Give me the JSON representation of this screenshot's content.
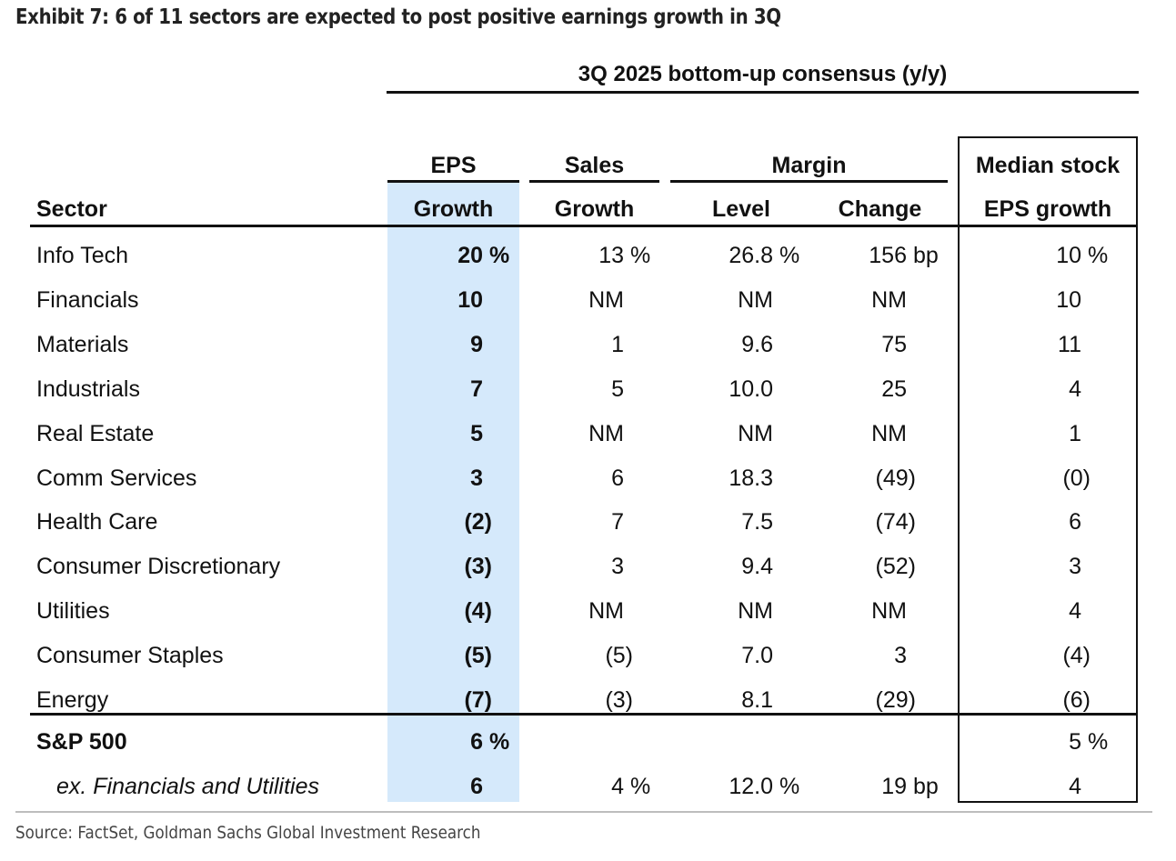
{
  "title": "Exhibit 7: 6 of 11 sectors are expected to post positive earnings growth in 3Q",
  "group_header": "3Q 2025 bottom-up consensus (y/y)",
  "columns": {
    "sector": "Sector",
    "eps_top": "EPS",
    "eps_bottom": "Growth",
    "sales_top": "Sales",
    "sales_bottom": "Growth",
    "margin_top": "Margin",
    "level": "Level",
    "change": "Change",
    "median_top": "Median stock",
    "median_bottom": "EPS growth"
  },
  "rows": [
    {
      "sector": "Info Tech",
      "eps": "20",
      "eps_sfx": " %",
      "sales": "13",
      "sales_sfx": " %",
      "level": "26.8",
      "level_sfx": " %",
      "change": "156",
      "change_sfx": " bp",
      "median": "10",
      "median_sfx": " %"
    },
    {
      "sector": "Financials",
      "eps": "10",
      "eps_sfx": "",
      "sales": "NM",
      "sales_sfx": "",
      "level": "NM",
      "level_sfx": "",
      "change": "NM",
      "change_sfx": "",
      "median": "10",
      "median_sfx": ""
    },
    {
      "sector": "Materials",
      "eps": "9",
      "eps_sfx": "",
      "sales": "1",
      "sales_sfx": "",
      "level": "9.6",
      "level_sfx": "",
      "change": "75",
      "change_sfx": "",
      "median": "11",
      "median_sfx": ""
    },
    {
      "sector": "Industrials",
      "eps": "7",
      "eps_sfx": "",
      "sales": "5",
      "sales_sfx": "",
      "level": "10.0",
      "level_sfx": "",
      "change": "25",
      "change_sfx": "",
      "median": "4",
      "median_sfx": ""
    },
    {
      "sector": "Real Estate",
      "eps": "5",
      "eps_sfx": "",
      "sales": "NM",
      "sales_sfx": "",
      "level": "NM",
      "level_sfx": "",
      "change": "NM",
      "change_sfx": "",
      "median": "1",
      "median_sfx": ""
    },
    {
      "sector": "Comm Services",
      "eps": "3",
      "eps_sfx": "",
      "sales": "6",
      "sales_sfx": "",
      "level": "18.3",
      "level_sfx": "",
      "change": "(49)",
      "change_sfx": "",
      "median": "(0)",
      "median_sfx": ""
    },
    {
      "sector": "Health Care",
      "eps": "(2)",
      "eps_sfx": "",
      "sales": "7",
      "sales_sfx": "",
      "level": "7.5",
      "level_sfx": "",
      "change": "(74)",
      "change_sfx": "",
      "median": "6",
      "median_sfx": ""
    },
    {
      "sector": "Consumer Discretionary",
      "eps": "(3)",
      "eps_sfx": "",
      "sales": "3",
      "sales_sfx": "",
      "level": "9.4",
      "level_sfx": "",
      "change": "(52)",
      "change_sfx": "",
      "median": "3",
      "median_sfx": ""
    },
    {
      "sector": "Utilities",
      "eps": "(4)",
      "eps_sfx": "",
      "sales": "NM",
      "sales_sfx": "",
      "level": "NM",
      "level_sfx": "",
      "change": "NM",
      "change_sfx": "",
      "median": "4",
      "median_sfx": ""
    },
    {
      "sector": "Consumer Staples",
      "eps": "(5)",
      "eps_sfx": "",
      "sales": "(5)",
      "sales_sfx": "",
      "level": "7.0",
      "level_sfx": "",
      "change": "3",
      "change_sfx": "",
      "median": "(4)",
      "median_sfx": ""
    },
    {
      "sector": "Energy",
      "eps": "(7)",
      "eps_sfx": "",
      "sales": "(3)",
      "sales_sfx": "",
      "level": "8.1",
      "level_sfx": "",
      "change": "(29)",
      "change_sfx": "",
      "median": "(6)",
      "median_sfx": ""
    }
  ],
  "totals": [
    {
      "sector": "S&P 500",
      "eps": "6",
      "eps_sfx": " %",
      "sales": "",
      "sales_sfx": "",
      "level": "",
      "level_sfx": "",
      "change": "",
      "change_sfx": "",
      "median": "5",
      "median_sfx": " %"
    },
    {
      "sector": "ex. Financials and Utilities",
      "eps": "6",
      "eps_sfx": "",
      "sales": "4",
      "sales_sfx": " %",
      "level": "12.0",
      "level_sfx": " %",
      "change": "19",
      "change_sfx": " bp",
      "median": "4",
      "median_sfx": ""
    }
  ],
  "source": "Source: FactSet, Goldman Sachs Global Investment Research",
  "colors": {
    "eps_highlight": "#d5e9fb",
    "rule": "#111111",
    "footer_rule": "#bdbdbd"
  }
}
